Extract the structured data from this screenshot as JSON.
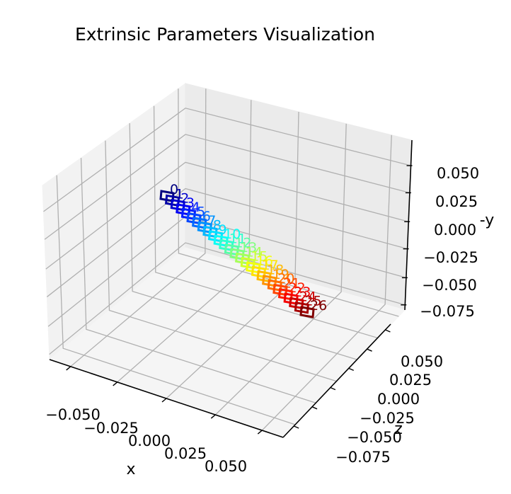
{
  "chart_data": {
    "type": "scatter3d",
    "title": "Extrinsic Parameters Visualization",
    "xlabel": "x",
    "ylabel": "-y",
    "zlabel": "z",
    "x_ticks": [
      "−0.050",
      "−0.025",
      "0.000",
      "0.025",
      "0.050"
    ],
    "z_ticks": [
      "0.050",
      "0.025",
      "0.000",
      "−0.025",
      "−0.050",
      "−0.075"
    ],
    "y_ticks": [
      "0.050",
      "0.025",
      "0.000",
      "−0.025",
      "−0.050",
      "−0.075"
    ],
    "grid": true,
    "colormap": "jet",
    "camera_count": 27,
    "camera_labels": [
      "0",
      "1",
      "2",
      "3",
      "4",
      "5",
      "6",
      "7",
      "8",
      "9",
      "10",
      "11",
      "12",
      "13",
      "14",
      "15",
      "16",
      "17",
      "18",
      "19",
      "20",
      "21",
      "22",
      "23",
      "24",
      "25",
      "26"
    ]
  }
}
